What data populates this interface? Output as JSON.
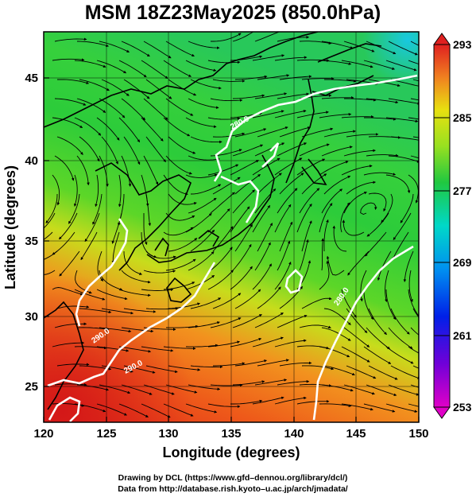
{
  "title": "MSM 18Z23May2025 (850.0hPa)",
  "x_axis": {
    "label": "Longitude (degrees)",
    "range": [
      120,
      150
    ],
    "ticks": [
      "120",
      "125",
      "130",
      "135",
      "140",
      "145",
      "150"
    ]
  },
  "y_axis": {
    "label": "Latitude  (degrees)",
    "range": [
      22.5,
      48
    ],
    "ticks": [
      "25",
      "30",
      "35",
      "40",
      "45"
    ]
  },
  "colorbar": {
    "range": [
      253,
      293
    ],
    "ticks": [
      "293",
      "285",
      "277",
      "269",
      "261",
      "253"
    ]
  },
  "contour_labels": [
    "290.0",
    "280.0",
    "280.0",
    "290.0"
  ],
  "credits": {
    "line1": "Drawing by DCL (https://www.gfd–dennou.org/library/dcl/)",
    "line2": "Data from http://database.rish.kyoto–u.ac.jp/arch/jmadata/"
  },
  "colors": {
    "warm": "#e8431c",
    "mid": "#22c83a",
    "cool": "#10c8d8",
    "contour": "#ffffff"
  }
}
